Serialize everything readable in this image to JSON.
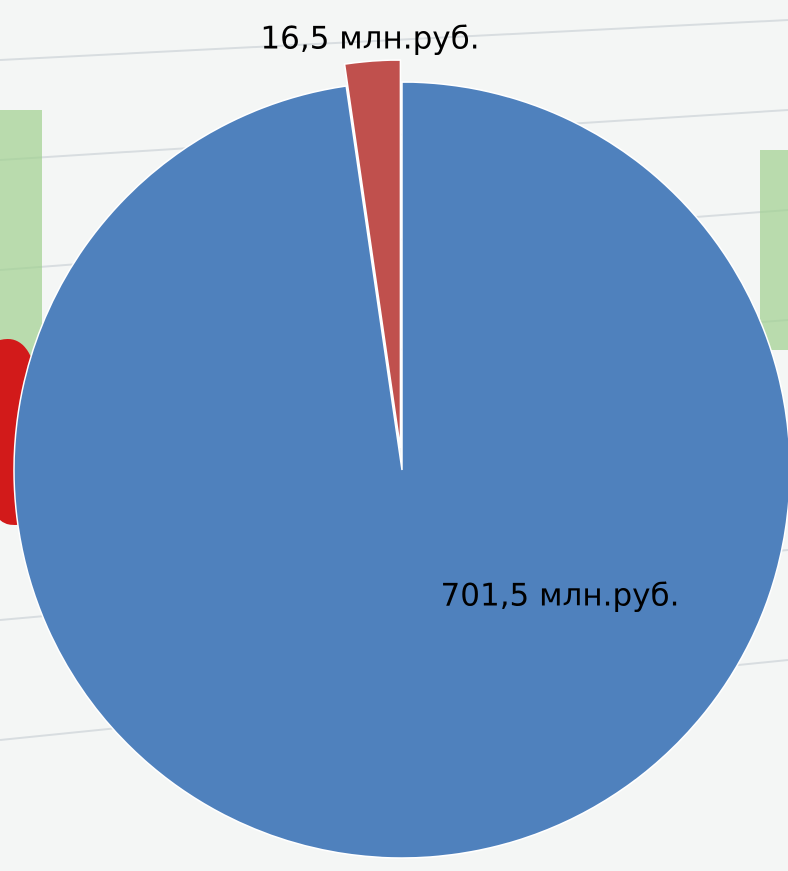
{
  "chart_data": {
    "type": "pie",
    "values": [
      701.5,
      16.5
    ],
    "value_labels": [
      "701,5 млн.руб.",
      "16,5 млн.руб."
    ],
    "colors": [
      "#4f81bd",
      "#c0504d"
    ]
  }
}
